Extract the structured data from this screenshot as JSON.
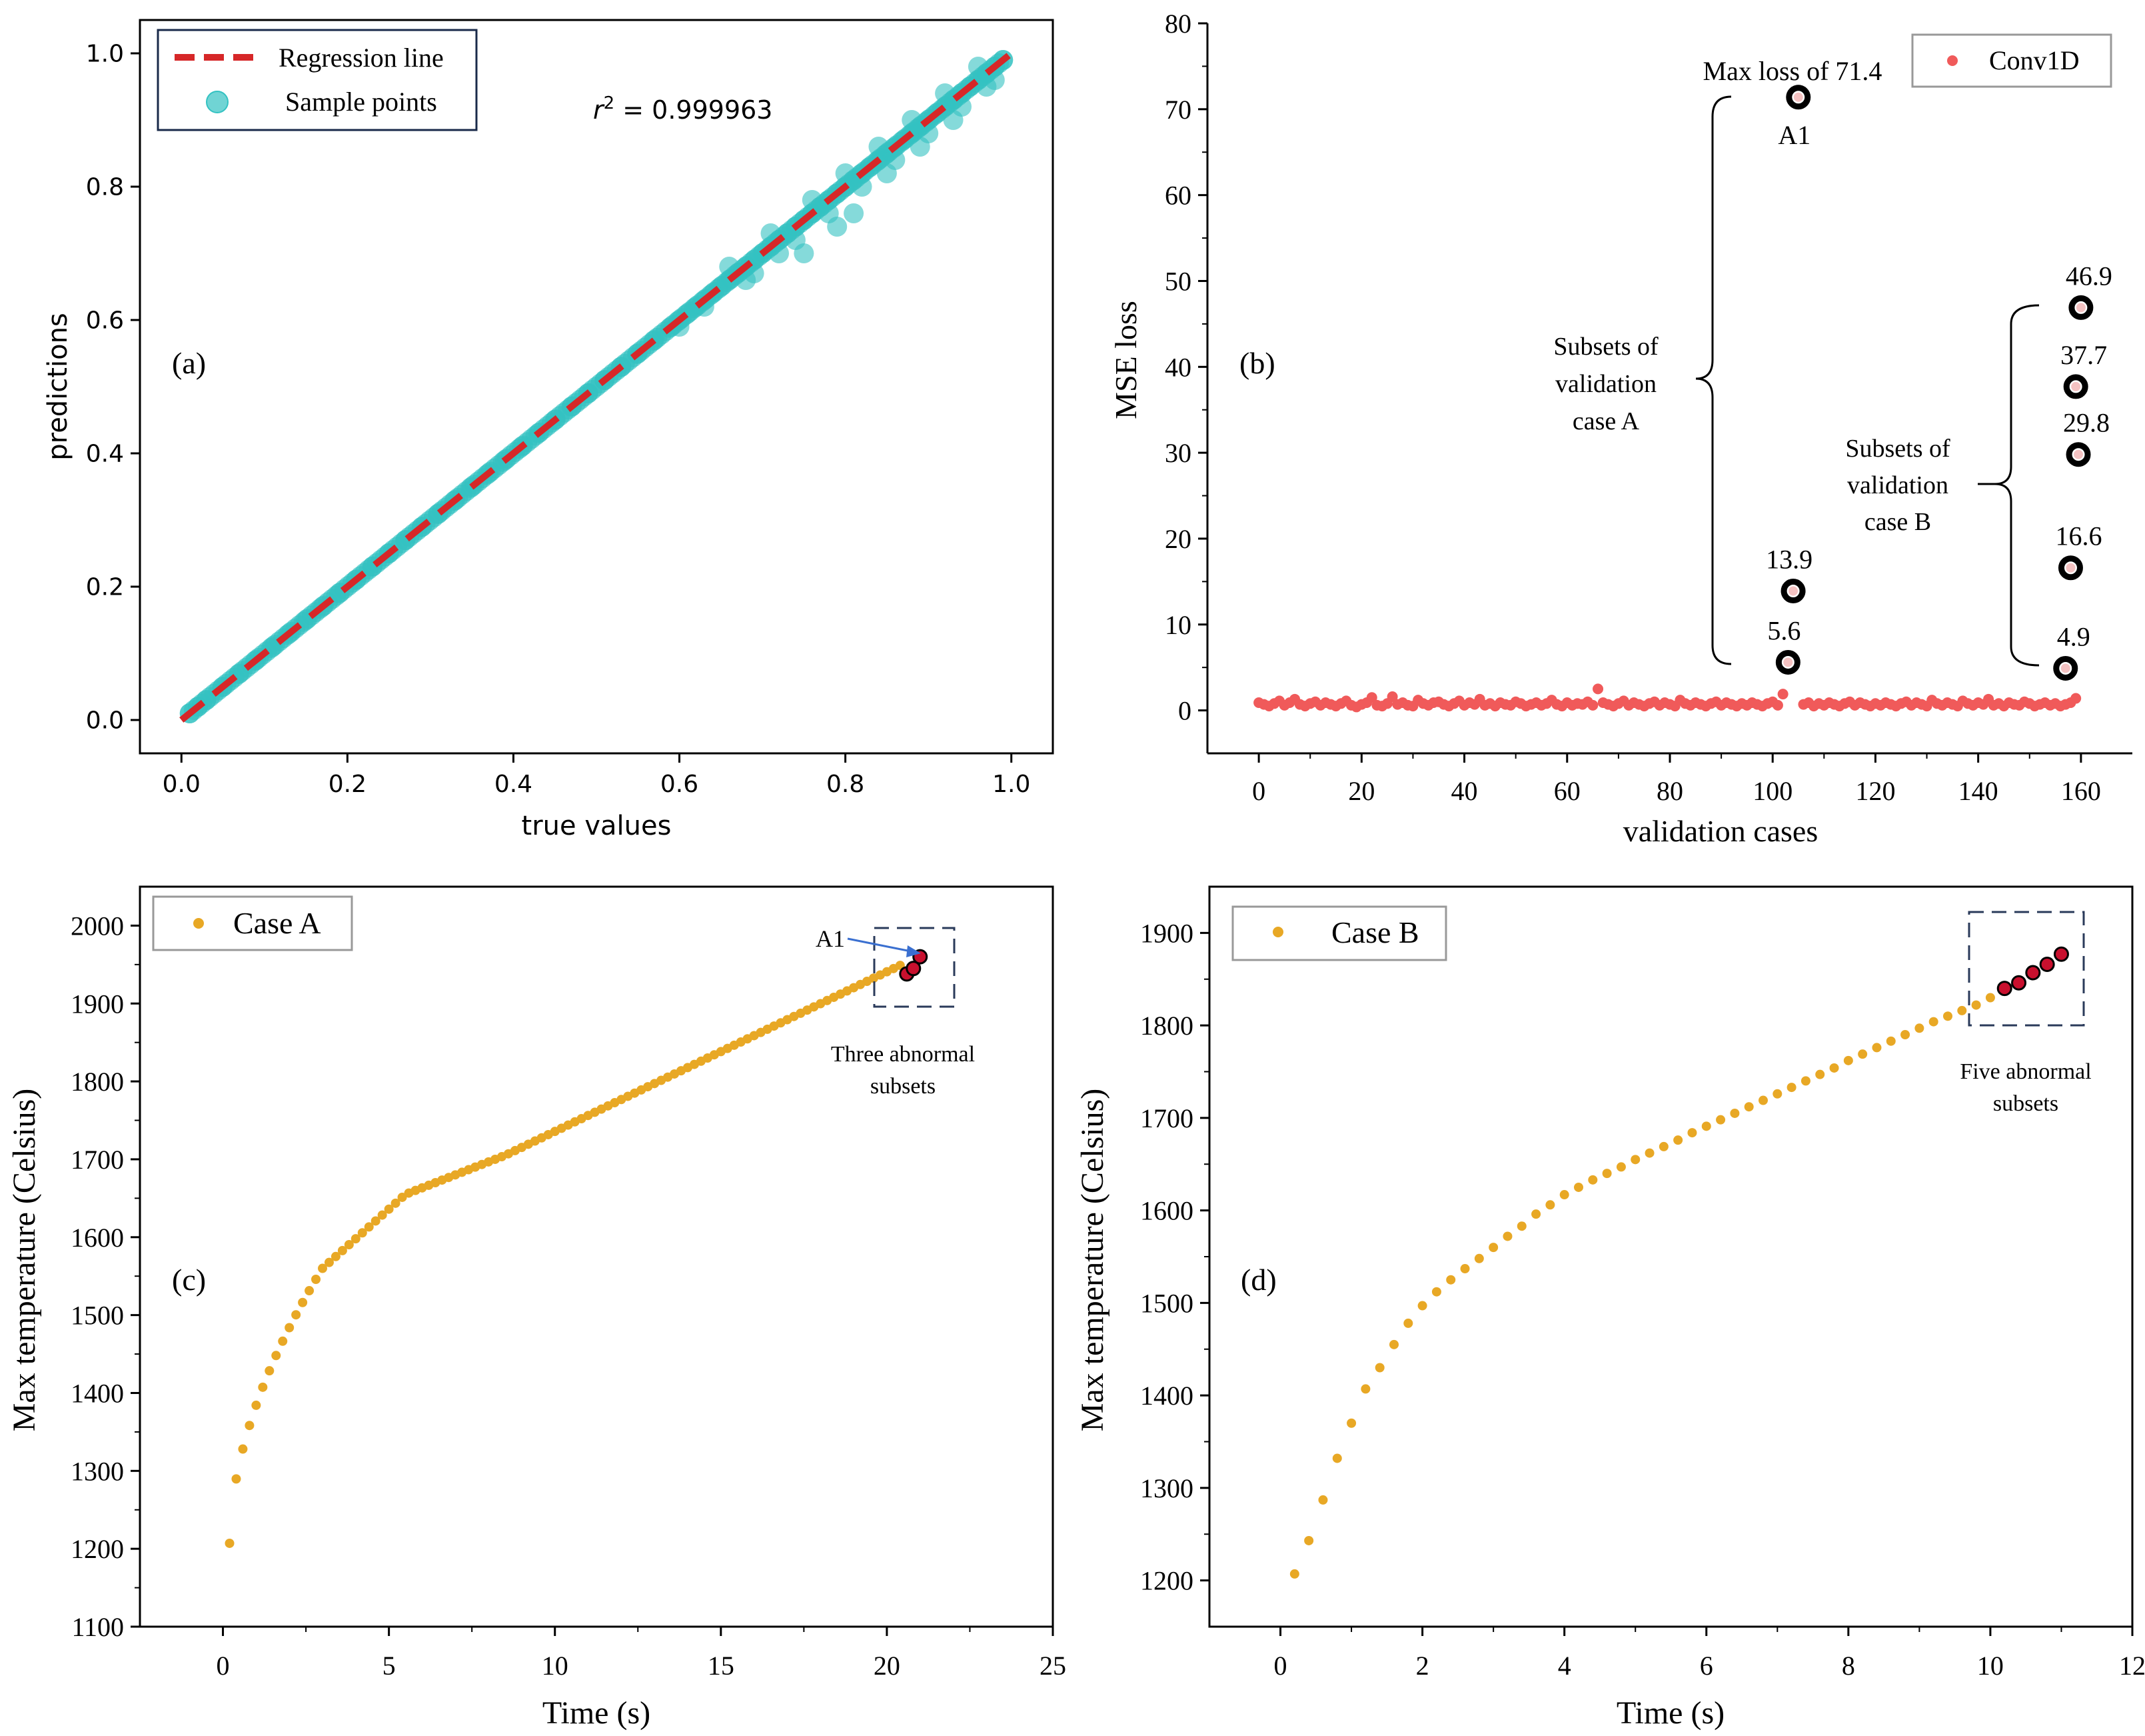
{
  "chart_data": [
    {
      "id": "a",
      "type": "scatter",
      "panel_label": "(a)",
      "xlabel": "true values",
      "ylabel": "predictions",
      "xlim": [
        -0.05,
        1.05
      ],
      "ylim": [
        -0.05,
        1.05
      ],
      "xticks": [
        0.0,
        0.2,
        0.4,
        0.6,
        0.8,
        1.0
      ],
      "yticks": [
        0.0,
        0.2,
        0.4,
        0.6,
        0.8,
        1.0
      ],
      "tick_labels": [
        "0.0",
        "0.2",
        "0.4",
        "0.6",
        "0.8",
        "1.0"
      ],
      "annotation": {
        "r2_prefix": "r",
        "r2_sup": "2",
        "r2_value": " = 0.999963"
      },
      "legend": {
        "position": "top-left",
        "entries": [
          "Regression line",
          "Sample points"
        ]
      },
      "regression_line": {
        "x": [
          0.0,
          1.0
        ],
        "y": [
          0.0,
          1.0
        ],
        "color": "#d62728",
        "style": "dashed"
      },
      "sample_color": "#33c2c2",
      "sample_points": {
        "x": [
          0.01,
          0.02,
          0.03,
          0.05,
          0.07,
          0.09,
          0.11,
          0.13,
          0.15,
          0.17,
          0.19,
          0.21,
          0.23,
          0.25,
          0.27,
          0.29,
          0.31,
          0.33,
          0.35,
          0.37,
          0.39,
          0.41,
          0.43,
          0.45,
          0.47,
          0.49,
          0.51,
          0.53,
          0.55,
          0.57,
          0.59,
          0.6,
          0.61,
          0.62,
          0.63,
          0.64,
          0.65,
          0.66,
          0.67,
          0.68,
          0.69,
          0.7,
          0.71,
          0.72,
          0.73,
          0.74,
          0.75,
          0.76,
          0.77,
          0.78,
          0.79,
          0.8,
          0.81,
          0.82,
          0.83,
          0.84,
          0.85,
          0.86,
          0.87,
          0.88,
          0.89,
          0.9,
          0.91,
          0.92,
          0.93,
          0.94,
          0.95,
          0.96,
          0.97,
          0.98,
          0.99,
          0.6,
          0.63,
          0.66,
          0.69,
          0.71,
          0.74,
          0.76,
          0.78,
          0.8,
          0.82,
          0.84,
          0.86,
          0.88,
          0.9,
          0.92,
          0.94,
          0.96,
          0.98,
          0.68,
          0.72,
          0.75,
          0.79,
          0.81,
          0.85,
          0.89,
          0.93,
          0.97
        ],
        "y": [
          0.01,
          0.02,
          0.03,
          0.05,
          0.07,
          0.09,
          0.11,
          0.13,
          0.15,
          0.17,
          0.19,
          0.21,
          0.23,
          0.25,
          0.27,
          0.29,
          0.31,
          0.33,
          0.35,
          0.37,
          0.39,
          0.41,
          0.43,
          0.45,
          0.47,
          0.49,
          0.51,
          0.53,
          0.55,
          0.57,
          0.59,
          0.6,
          0.61,
          0.62,
          0.63,
          0.64,
          0.65,
          0.66,
          0.67,
          0.68,
          0.69,
          0.7,
          0.71,
          0.72,
          0.73,
          0.74,
          0.75,
          0.76,
          0.77,
          0.78,
          0.79,
          0.8,
          0.81,
          0.82,
          0.83,
          0.84,
          0.85,
          0.86,
          0.87,
          0.88,
          0.89,
          0.9,
          0.91,
          0.92,
          0.93,
          0.94,
          0.95,
          0.96,
          0.97,
          0.98,
          0.99,
          0.59,
          0.62,
          0.68,
          0.67,
          0.73,
          0.72,
          0.78,
          0.76,
          0.82,
          0.8,
          0.86,
          0.84,
          0.9,
          0.88,
          0.94,
          0.92,
          0.98,
          0.96,
          0.66,
          0.7,
          0.7,
          0.74,
          0.76,
          0.82,
          0.86,
          0.9,
          0.95
        ]
      }
    },
    {
      "id": "b",
      "type": "scatter",
      "panel_label": "(b)",
      "xlabel": "validation cases",
      "ylabel": "MSE loss",
      "xlim": [
        -10,
        170
      ],
      "ylim": [
        -5,
        80
      ],
      "xticks": [
        0,
        20,
        40,
        60,
        80,
        100,
        120,
        140,
        160
      ],
      "yticks": [
        0,
        10,
        20,
        30,
        40,
        50,
        60,
        70,
        80
      ],
      "legend": {
        "position": "top-right",
        "entries": [
          "Conv1D"
        ]
      },
      "series_color": "#f05a5a",
      "baseline_values": [
        0.9,
        0.7,
        0.5,
        0.8,
        1.1,
        0.6,
        0.9,
        1.3,
        0.7,
        0.5,
        0.8,
        1.0,
        0.6,
        0.9,
        0.7,
        0.5,
        0.8,
        1.1,
        0.6,
        0.4,
        0.7,
        0.9,
        1.5,
        0.6,
        0.5,
        0.8,
        1.6,
        0.7,
        0.9,
        0.6,
        0.5,
        1.2,
        0.8,
        0.6,
        0.9,
        1.0,
        0.7,
        0.5,
        0.8,
        1.1,
        0.6,
        0.9,
        0.7,
        1.3,
        0.6,
        0.8,
        0.5,
        0.9,
        0.7,
        0.6,
        1.0,
        0.8,
        0.5,
        0.7,
        0.9,
        0.6,
        0.8,
        1.2,
        0.7,
        0.5,
        0.9,
        0.6,
        0.8,
        0.7,
        1.0,
        0.6,
        2.5,
        0.9,
        0.7,
        0.5,
        0.8,
        1.1,
        0.6,
        0.9,
        0.7,
        0.5,
        0.8,
        1.0,
        0.6,
        0.9,
        0.7,
        0.5,
        1.2,
        0.8,
        0.6,
        0.9,
        0.7,
        0.5,
        0.8,
        1.0,
        0.6,
        0.9,
        0.7,
        0.5,
        0.8,
        0.6,
        0.9,
        0.7,
        0.5,
        0.8,
        1.0,
        0.6,
        1.9,
        null,
        null,
        null,
        0.7,
        0.9,
        0.5,
        0.8,
        0.6,
        0.9,
        0.7,
        0.5,
        0.8,
        1.0,
        0.6,
        0.9,
        0.7,
        0.5,
        0.8,
        0.6,
        0.9,
        0.7,
        0.5,
        0.8,
        1.0,
        0.6,
        0.9,
        0.7,
        0.5,
        1.2,
        0.8,
        0.6,
        0.9,
        0.7,
        0.5,
        1.1,
        0.8,
        0.6,
        0.9,
        0.7,
        1.3,
        0.6,
        0.8,
        0.5,
        0.9,
        0.7,
        0.6,
        1.0,
        0.8,
        0.5,
        0.7,
        0.9,
        0.6,
        0.8,
        0.5,
        0.7,
        0.9,
        1.4
      ],
      "highlighted": [
        {
          "x": 103,
          "y": 5.6,
          "label": "5.6"
        },
        {
          "x": 104,
          "y": 13.9,
          "label": "13.9"
        },
        {
          "x": 105,
          "y": 71.4,
          "label": "A1"
        },
        {
          "x": 157,
          "y": 4.9,
          "label": "4.9"
        },
        {
          "x": 158,
          "y": 16.6,
          "label": "16.6"
        },
        {
          "x": 159.5,
          "y": 29.8,
          "label": "29.8"
        },
        {
          "x": 159,
          "y": 37.7,
          "label": "37.7"
        },
        {
          "x": 160,
          "y": 46.9,
          "label": "46.9"
        }
      ],
      "annotations": {
        "max_loss": "Max loss of 71.4",
        "subsets_a": [
          "Subsets of",
          "validation",
          "case A"
        ],
        "subsets_b": [
          "Subsets of",
          "validation",
          "case B"
        ]
      }
    },
    {
      "id": "c",
      "type": "scatter",
      "panel_label": "(c)",
      "xlabel": "Time (s)",
      "ylabel": "Max temperature (Celsius)",
      "xlim": [
        -2.5,
        25
      ],
      "ylim": [
        1100,
        2050
      ],
      "xticks": [
        0,
        5,
        10,
        15,
        20,
        25
      ],
      "yticks": [
        1100,
        1200,
        1300,
        1400,
        1500,
        1600,
        1700,
        1800,
        1900,
        2000
      ],
      "legend": {
        "position": "top-left",
        "entries": [
          "Case A"
        ]
      },
      "series_color": "#e8a825",
      "curve": {
        "t_start": 0.2,
        "t_end": 20.4,
        "t_step": 0.2,
        "t0": 0.2,
        "t_mid": 5.5,
        "t_late": 8.5,
        "anchor_T": [
          1207,
          1560,
          1655,
          1705
        ],
        "tail_slope": 20.5
      },
      "abnormal_points": [
        {
          "x": 20.6,
          "y": 1938
        },
        {
          "x": 20.8,
          "y": 1945
        },
        {
          "x": 21.0,
          "y": 1960
        }
      ],
      "annotations": {
        "a1": "A1",
        "note": [
          "Three abnormal",
          "subsets"
        ]
      }
    },
    {
      "id": "d",
      "type": "scatter",
      "panel_label": "(d)",
      "xlabel": "Time (s)",
      "ylabel": "Max temperature (Celsius)",
      "xlim": [
        -1,
        12
      ],
      "ylim": [
        1150,
        1950
      ],
      "xticks": [
        0,
        2,
        4,
        6,
        8,
        10,
        12
      ],
      "yticks": [
        1200,
        1300,
        1400,
        1500,
        1600,
        1700,
        1800,
        1900
      ],
      "legend": {
        "position": "top-left",
        "entries": [
          "Case B"
        ]
      },
      "series_color": "#e8a825",
      "points": {
        "x": [
          0.2,
          0.4,
          0.6,
          0.8,
          1.0,
          1.2,
          1.4,
          1.6,
          1.8,
          2.0,
          2.2,
          2.4,
          2.6,
          2.8,
          3.0,
          3.2,
          3.4,
          3.6,
          3.8,
          4.0,
          4.2,
          4.4,
          4.6,
          4.8,
          5.0,
          5.2,
          5.4,
          5.6,
          5.8,
          6.0,
          6.2,
          6.4,
          6.6,
          6.8,
          7.0,
          7.2,
          7.4,
          7.6,
          7.8,
          8.0,
          8.2,
          8.4,
          8.6,
          8.8,
          9.0,
          9.2,
          9.4,
          9.6,
          9.8,
          10.0
        ],
        "y": [
          1207,
          1243,
          1287,
          1332,
          1370,
          1407,
          1430,
          1455,
          1478,
          1497,
          1512,
          1525,
          1537,
          1548,
          1560,
          1572,
          1583,
          1596,
          1606,
          1617,
          1625,
          1633,
          1640,
          1647,
          1655,
          1662,
          1669,
          1676,
          1684,
          1691,
          1698,
          1705,
          1712,
          1719,
          1726,
          1733,
          1740,
          1747,
          1754,
          1762,
          1769,
          1776,
          1783,
          1790,
          1797,
          1804,
          1810,
          1816,
          1822,
          1830
        ]
      },
      "abnormal_points": [
        {
          "x": 10.2,
          "y": 1840
        },
        {
          "x": 10.4,
          "y": 1846
        },
        {
          "x": 10.6,
          "y": 1857
        },
        {
          "x": 10.8,
          "y": 1866
        },
        {
          "x": 11.0,
          "y": 1877
        }
      ],
      "annotations": {
        "note": [
          "Five abnormal",
          "subsets"
        ]
      }
    }
  ]
}
